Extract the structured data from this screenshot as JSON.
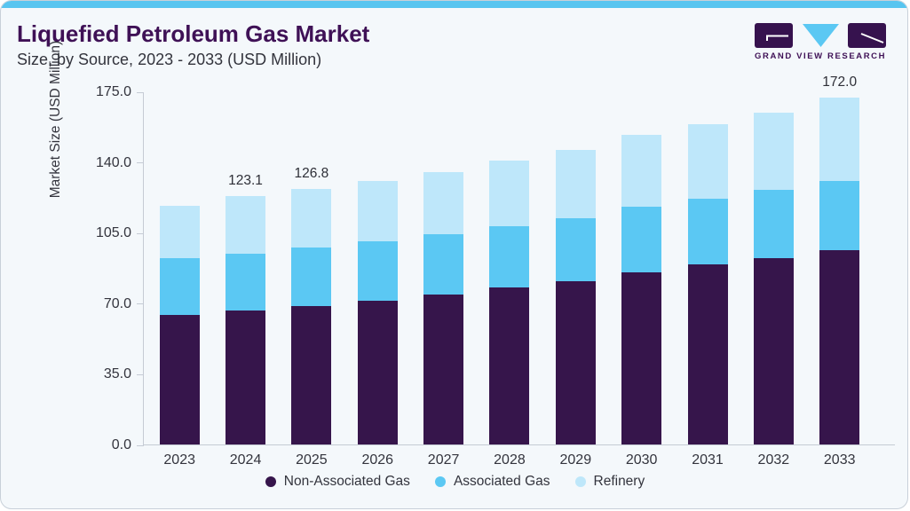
{
  "card": {
    "title": "Liquefied Petroleum Gas Market",
    "subtitle": "Size, by Source, 2023 - 2033 (USD Million)"
  },
  "logo": {
    "wordmark": "GRAND VIEW RESEARCH",
    "purple": "#36124E",
    "blue": "#5BC8F3"
  },
  "colors": {
    "card_background": "#F4F8FB",
    "top_strip": "#58C5F0",
    "card_border": "#C8D0D9",
    "axis": "#C5CBD4",
    "title_text": "#3F1156",
    "body_text": "#33343D"
  },
  "chart_data": {
    "type": "bar",
    "stacked": true,
    "title": "Liquefied Petroleum Gas Market Size, by Source, 2023 - 2033 (USD Million)",
    "xlabel": "",
    "ylabel": "Market Size (USD Million)",
    "ylim": [
      0,
      175
    ],
    "ytick_labels": [
      "175.0",
      "140.0",
      "105.0",
      "70.0",
      "35.0",
      "0.0"
    ],
    "ytick_values": [
      175,
      140,
      105,
      70,
      35,
      0
    ],
    "grid": false,
    "legend_position": "bottom",
    "categories": [
      "2023",
      "2024",
      "2025",
      "2026",
      "2027",
      "2028",
      "2029",
      "2030",
      "2031",
      "2032",
      "2033"
    ],
    "series": [
      {
        "name": "Non-Associated Gas",
        "color": "#36154B",
        "values": [
          64.1,
          66.2,
          68.5,
          71.4,
          74.1,
          77.7,
          80.8,
          85.5,
          89.1,
          92.4,
          96.4
        ]
      },
      {
        "name": "Associated Gas",
        "color": "#5BC8F3",
        "values": [
          28.3,
          28.3,
          29.1,
          29.2,
          30.3,
          30.5,
          31.5,
          32.4,
          32.9,
          33.8,
          34.1
        ]
      },
      {
        "name": "Refinery",
        "color": "#BEE7FA",
        "values": [
          26.1,
          28.6,
          29.2,
          29.8,
          30.6,
          32.7,
          33.9,
          35.6,
          36.6,
          38.2,
          41.5
        ]
      }
    ],
    "totals": [
      118.5,
      123.1,
      126.8,
      130.4,
      135.0,
      140.9,
      146.2,
      153.5,
      158.6,
      164.4,
      172.0
    ],
    "bar_value_labels": [
      null,
      "123.1",
      "126.8",
      null,
      null,
      null,
      null,
      null,
      null,
      null,
      "172.0"
    ]
  }
}
